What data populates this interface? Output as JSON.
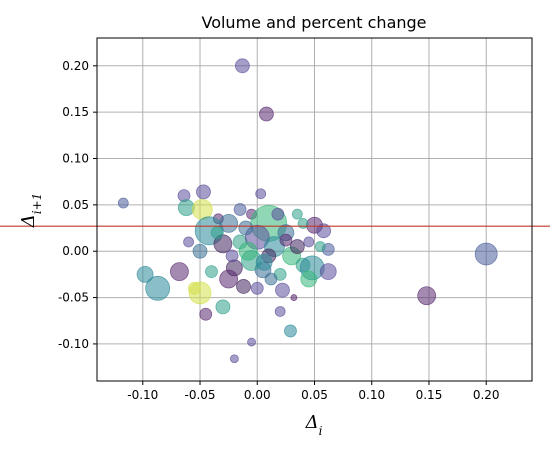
{
  "chart_data": {
    "type": "scatter",
    "title": "Volume and percent change",
    "xlabel": "Δ_i",
    "ylabel": "Δ_{i+1}",
    "xlim": [
      -0.14,
      0.24
    ],
    "ylim": [
      -0.14,
      0.23
    ],
    "xticks": [
      "-0.10",
      "-0.05",
      "0.00",
      "0.05",
      "0.10",
      "0.15",
      "0.20"
    ],
    "xtick_values": [
      -0.1,
      -0.05,
      0.0,
      0.05,
      0.1,
      0.15,
      0.2
    ],
    "yticks": [
      "-0.10",
      "-0.05",
      "0.00",
      "0.05",
      "0.10",
      "0.15",
      "0.20"
    ],
    "ytick_values": [
      -0.1,
      -0.05,
      0.0,
      0.05,
      0.1,
      0.15,
      0.2
    ],
    "grid": true,
    "reference_line": {
      "y": 0.027,
      "color": "#c0392b"
    },
    "points": [
      {
        "x": -0.013,
        "y": 0.2,
        "size": 7,
        "color": "#5b4f9a"
      },
      {
        "x": 0.008,
        "y": 0.148,
        "size": 7,
        "color": "#5a2a70"
      },
      {
        "x": -0.117,
        "y": 0.052,
        "size": 5,
        "color": "#4a5d9a"
      },
      {
        "x": -0.064,
        "y": 0.06,
        "size": 6,
        "color": "#5b4f9a"
      },
      {
        "x": -0.047,
        "y": 0.064,
        "size": 7,
        "color": "#5b4f9a"
      },
      {
        "x": 0.003,
        "y": 0.062,
        "size": 5,
        "color": "#5b4f9a"
      },
      {
        "x": -0.062,
        "y": 0.047,
        "size": 8,
        "color": "#2fa08a"
      },
      {
        "x": -0.048,
        "y": 0.045,
        "size": 10,
        "color": "#d4e04a"
      },
      {
        "x": -0.034,
        "y": 0.035,
        "size": 5,
        "color": "#5a2a70"
      },
      {
        "x": -0.042,
        "y": 0.022,
        "size": 14,
        "color": "#2b8a99"
      },
      {
        "x": -0.025,
        "y": 0.03,
        "size": 9,
        "color": "#3a6f96"
      },
      {
        "x": -0.015,
        "y": 0.045,
        "size": 6,
        "color": "#4a5d9a"
      },
      {
        "x": -0.005,
        "y": 0.04,
        "size": 5,
        "color": "#5a2a70"
      },
      {
        "x": 0.01,
        "y": 0.03,
        "size": 18,
        "color": "#35b779"
      },
      {
        "x": 0.025,
        "y": 0.02,
        "size": 8,
        "color": "#3a6f96"
      },
      {
        "x": 0.035,
        "y": 0.04,
        "size": 5,
        "color": "#2fa08a"
      },
      {
        "x": 0.05,
        "y": 0.028,
        "size": 8,
        "color": "#5a2a70"
      },
      {
        "x": 0.058,
        "y": 0.022,
        "size": 7,
        "color": "#5b4f9a"
      },
      {
        "x": 0.062,
        "y": 0.002,
        "size": 6,
        "color": "#4a5d9a"
      },
      {
        "x": 0.045,
        "y": 0.01,
        "size": 5,
        "color": "#5b4f9a"
      },
      {
        "x": -0.05,
        "y": 0.0,
        "size": 7,
        "color": "#3a6f96"
      },
      {
        "x": -0.03,
        "y": 0.008,
        "size": 9,
        "color": "#44275f"
      },
      {
        "x": -0.015,
        "y": 0.01,
        "size": 7,
        "color": "#2fa08a"
      },
      {
        "x": 0.0,
        "y": 0.015,
        "size": 12,
        "color": "#5b4f9a"
      },
      {
        "x": 0.015,
        "y": 0.005,
        "size": 10,
        "color": "#2b8a99"
      },
      {
        "x": 0.03,
        "y": -0.005,
        "size": 9,
        "color": "#35b779"
      },
      {
        "x": 0.04,
        "y": -0.015,
        "size": 7,
        "color": "#2fa08a"
      },
      {
        "x": 0.048,
        "y": -0.018,
        "size": 12,
        "color": "#2b8a99"
      },
      {
        "x": 0.062,
        "y": -0.022,
        "size": 8,
        "color": "#5b4f9a"
      },
      {
        "x": 0.045,
        "y": -0.03,
        "size": 8,
        "color": "#35b779"
      },
      {
        "x": 0.02,
        "y": -0.025,
        "size": 6,
        "color": "#2fa08a"
      },
      {
        "x": 0.005,
        "y": -0.02,
        "size": 8,
        "color": "#3a6f96"
      },
      {
        "x": -0.005,
        "y": -0.01,
        "size": 10,
        "color": "#2fa08a"
      },
      {
        "x": -0.02,
        "y": -0.018,
        "size": 8,
        "color": "#44275f"
      },
      {
        "x": -0.025,
        "y": -0.03,
        "size": 9,
        "color": "#5a2a70"
      },
      {
        "x": -0.04,
        "y": -0.022,
        "size": 6,
        "color": "#2fa08a"
      },
      {
        "x": -0.098,
        "y": -0.025,
        "size": 8,
        "color": "#2b8a99"
      },
      {
        "x": -0.068,
        "y": -0.022,
        "size": 9,
        "color": "#5a2a70"
      },
      {
        "x": -0.087,
        "y": -0.04,
        "size": 12,
        "color": "#2b8a99"
      },
      {
        "x": -0.05,
        "y": -0.045,
        "size": 11,
        "color": "#d4e04a"
      },
      {
        "x": -0.055,
        "y": -0.04,
        "size": 6,
        "color": "#d4e04a"
      },
      {
        "x": -0.045,
        "y": -0.068,
        "size": 6,
        "color": "#5a2a70"
      },
      {
        "x": -0.03,
        "y": -0.06,
        "size": 7,
        "color": "#2fa08a"
      },
      {
        "x": -0.012,
        "y": -0.038,
        "size": 7,
        "color": "#44275f"
      },
      {
        "x": 0.0,
        "y": -0.04,
        "size": 6,
        "color": "#5b4f9a"
      },
      {
        "x": 0.012,
        "y": -0.03,
        "size": 6,
        "color": "#3a6f96"
      },
      {
        "x": 0.022,
        "y": -0.042,
        "size": 7,
        "color": "#5b4f9a"
      },
      {
        "x": 0.032,
        "y": -0.05,
        "size": 3,
        "color": "#5a2a70"
      },
      {
        "x": 0.02,
        "y": -0.065,
        "size": 5,
        "color": "#5b4f9a"
      },
      {
        "x": 0.029,
        "y": -0.086,
        "size": 6,
        "color": "#2b8a99"
      },
      {
        "x": -0.005,
        "y": -0.098,
        "size": 4,
        "color": "#5b4f9a"
      },
      {
        "x": -0.02,
        "y": -0.116,
        "size": 4,
        "color": "#5b4f9a"
      },
      {
        "x": 0.148,
        "y": -0.048,
        "size": 9,
        "color": "#5a2a70"
      },
      {
        "x": 0.2,
        "y": -0.003,
        "size": 11,
        "color": "#4a5d9a"
      },
      {
        "x": 0.01,
        "y": -0.005,
        "size": 7,
        "color": "#44275f"
      },
      {
        "x": 0.025,
        "y": 0.012,
        "size": 6,
        "color": "#5a2a70"
      },
      {
        "x": -0.035,
        "y": 0.02,
        "size": 6,
        "color": "#2fa08a"
      },
      {
        "x": -0.01,
        "y": 0.025,
        "size": 7,
        "color": "#3a6f96"
      },
      {
        "x": 0.018,
        "y": 0.04,
        "size": 6,
        "color": "#5b4f9a"
      },
      {
        "x": 0.035,
        "y": 0.005,
        "size": 7,
        "color": "#44275f"
      },
      {
        "x": -0.06,
        "y": 0.01,
        "size": 5,
        "color": "#5b4f9a"
      },
      {
        "x": 0.055,
        "y": 0.005,
        "size": 5,
        "color": "#2fa08a"
      },
      {
        "x": -0.008,
        "y": 0.0,
        "size": 9,
        "color": "#35b779"
      },
      {
        "x": 0.006,
        "y": -0.012,
        "size": 8,
        "color": "#2b8a99"
      },
      {
        "x": -0.022,
        "y": -0.005,
        "size": 6,
        "color": "#5b4f9a"
      },
      {
        "x": 0.04,
        "y": 0.03,
        "size": 5,
        "color": "#2fa08a"
      }
    ]
  }
}
